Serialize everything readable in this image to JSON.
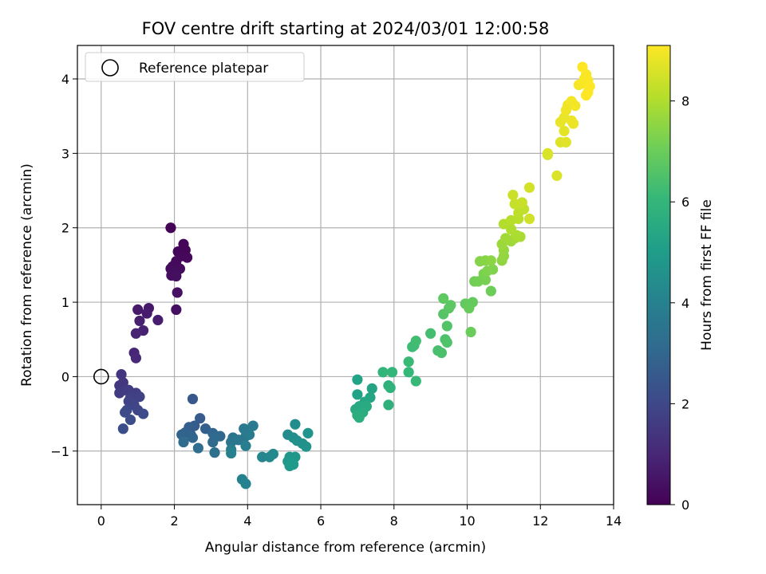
{
  "chart_data": {
    "type": "scatter",
    "title": "FOV centre drift starting at 2024/03/01 12:00:58",
    "xlabel": "Angular distance from reference (arcmin)",
    "ylabel": "Rotation from reference (arcmin)",
    "xlim": [
      -0.65,
      14.0
    ],
    "ylim": [
      -1.72,
      4.45
    ],
    "xticks": [
      0,
      2,
      4,
      6,
      8,
      10,
      12,
      14
    ],
    "yticks": [
      -1,
      0,
      1,
      2,
      3,
      4
    ],
    "xtick_labels": [
      "0",
      "2",
      "4",
      "6",
      "8",
      "10",
      "12",
      "14"
    ],
    "ytick_labels": [
      "−1",
      "0",
      "1",
      "2",
      "3",
      "4"
    ],
    "grid": true,
    "legend": {
      "placement": "top-left",
      "entries": [
        {
          "label": "Reference platepar",
          "marker": "open-circle",
          "color": "#000000"
        }
      ]
    },
    "reference_point": {
      "x": 0,
      "y": 0
    },
    "colorbar": {
      "label": "Hours from first FF file",
      "range": [
        0,
        9.1
      ],
      "ticks": [
        0,
        2,
        4,
        6,
        8
      ],
      "tick_labels": [
        "0",
        "2",
        "4",
        "6",
        "8"
      ],
      "colormap": "viridis"
    },
    "points": [
      [
        1.9,
        2.0,
        0.05
      ],
      [
        2.25,
        1.78,
        0.08
      ],
      [
        2.3,
        1.7,
        0.1
      ],
      [
        2.1,
        1.68,
        0.12
      ],
      [
        2.2,
        1.62,
        0.15
      ],
      [
        2.35,
        1.6,
        0.18
      ],
      [
        2.05,
        1.55,
        0.2
      ],
      [
        1.95,
        1.48,
        0.22
      ],
      [
        2.15,
        1.45,
        0.25
      ],
      [
        1.9,
        1.45,
        0.28
      ],
      [
        2.0,
        1.4,
        0.3
      ],
      [
        1.92,
        1.36,
        0.32
      ],
      [
        2.05,
        1.35,
        0.35
      ],
      [
        2.08,
        1.13,
        0.38
      ],
      [
        2.05,
        0.9,
        0.4
      ],
      [
        1.3,
        0.92,
        0.6
      ],
      [
        1.0,
        0.9,
        0.65
      ],
      [
        1.25,
        0.85,
        0.7
      ],
      [
        1.55,
        0.76,
        0.75
      ],
      [
        1.05,
        0.75,
        0.8
      ],
      [
        1.15,
        0.62,
        0.85
      ],
      [
        0.95,
        0.58,
        0.9
      ],
      [
        0.9,
        0.32,
        0.95
      ],
      [
        0.95,
        0.25,
        1.0
      ],
      [
        0.55,
        0.03,
        1.4
      ],
      [
        0.6,
        -0.08,
        1.45
      ],
      [
        0.5,
        -0.12,
        1.5
      ],
      [
        0.65,
        -0.18,
        1.55
      ],
      [
        0.5,
        -0.22,
        1.6
      ],
      [
        0.75,
        -0.18,
        1.65
      ],
      [
        0.95,
        -0.22,
        1.7
      ],
      [
        0.8,
        -0.28,
        1.75
      ],
      [
        1.05,
        -0.27,
        1.8
      ],
      [
        0.75,
        -0.33,
        1.85
      ],
      [
        0.9,
        -0.38,
        1.9
      ],
      [
        1.0,
        -0.45,
        1.95
      ],
      [
        0.7,
        -0.45,
        2.0
      ],
      [
        1.15,
        -0.5,
        2.05
      ],
      [
        0.65,
        -0.48,
        2.1
      ],
      [
        0.8,
        -0.58,
        2.15
      ],
      [
        0.6,
        -0.7,
        2.2
      ],
      [
        2.5,
        -0.3,
        2.5
      ],
      [
        2.7,
        -0.56,
        2.6
      ],
      [
        2.55,
        -0.66,
        2.65
      ],
      [
        2.4,
        -0.68,
        2.7
      ],
      [
        2.85,
        -0.7,
        2.75
      ],
      [
        2.3,
        -0.75,
        2.8
      ],
      [
        2.45,
        -0.78,
        2.85
      ],
      [
        2.2,
        -0.78,
        2.9
      ],
      [
        2.5,
        -0.82,
        2.95
      ],
      [
        3.05,
        -0.76,
        3.0
      ],
      [
        3.25,
        -0.8,
        3.05
      ],
      [
        3.1,
        -0.82,
        3.1
      ],
      [
        3.05,
        -0.88,
        3.15
      ],
      [
        2.25,
        -0.88,
        3.2
      ],
      [
        2.65,
        -0.96,
        3.25
      ],
      [
        3.1,
        -1.02,
        3.3
      ],
      [
        3.6,
        -0.82,
        3.5
      ],
      [
        3.55,
        -0.88,
        3.55
      ],
      [
        3.75,
        -0.85,
        3.6
      ],
      [
        3.95,
        -0.8,
        3.65
      ],
      [
        3.9,
        -0.7,
        3.7
      ],
      [
        4.15,
        -0.66,
        3.75
      ],
      [
        4.05,
        -0.78,
        3.8
      ],
      [
        3.95,
        -0.93,
        3.85
      ],
      [
        3.55,
        -0.98,
        3.9
      ],
      [
        3.55,
        -1.03,
        3.95
      ],
      [
        3.85,
        -1.38,
        4.0
      ],
      [
        3.95,
        -1.44,
        4.05
      ],
      [
        4.4,
        -1.08,
        4.2
      ],
      [
        4.6,
        -1.08,
        4.25
      ],
      [
        4.7,
        -1.04,
        4.3
      ],
      [
        5.1,
        -0.78,
        4.4
      ],
      [
        5.3,
        -0.64,
        4.45
      ],
      [
        5.25,
        -0.82,
        4.5
      ],
      [
        5.35,
        -0.86,
        4.55
      ],
      [
        5.5,
        -0.9,
        4.6
      ],
      [
        5.6,
        -0.94,
        4.65
      ],
      [
        5.65,
        -0.76,
        4.7
      ],
      [
        5.15,
        -1.08,
        4.75
      ],
      [
        5.3,
        -1.08,
        4.8
      ],
      [
        5.1,
        -1.14,
        4.85
      ],
      [
        5.15,
        -1.2,
        4.9
      ],
      [
        5.25,
        -1.18,
        4.95
      ],
      [
        7.0,
        -0.04,
        5.2
      ],
      [
        7.0,
        -0.24,
        5.25
      ],
      [
        7.4,
        -0.16,
        5.3
      ],
      [
        7.35,
        -0.28,
        5.35
      ],
      [
        7.2,
        -0.34,
        5.4
      ],
      [
        7.05,
        -0.4,
        5.45
      ],
      [
        6.95,
        -0.44,
        5.5
      ],
      [
        7.25,
        -0.4,
        5.55
      ],
      [
        7.15,
        -0.48,
        5.6
      ],
      [
        7.0,
        -0.52,
        5.65
      ],
      [
        7.05,
        -0.55,
        5.7
      ],
      [
        7.85,
        -0.12,
        5.75
      ],
      [
        7.85,
        -0.38,
        5.8
      ],
      [
        7.9,
        -0.15,
        5.85
      ],
      [
        7.7,
        0.06,
        5.95
      ],
      [
        7.95,
        0.06,
        6.0
      ],
      [
        8.4,
        0.06,
        6.05
      ],
      [
        8.6,
        -0.06,
        6.1
      ],
      [
        8.4,
        0.2,
        6.15
      ],
      [
        8.5,
        0.4,
        6.2
      ],
      [
        8.55,
        0.42,
        6.25
      ],
      [
        8.6,
        0.48,
        6.3
      ],
      [
        9.0,
        0.58,
        6.35
      ],
      [
        9.2,
        0.35,
        6.4
      ],
      [
        9.3,
        0.32,
        6.45
      ],
      [
        9.4,
        0.5,
        6.5
      ],
      [
        9.45,
        0.46,
        6.55
      ],
      [
        9.45,
        0.68,
        6.6
      ],
      [
        9.35,
        0.84,
        6.65
      ],
      [
        9.5,
        0.92,
        6.7
      ],
      [
        9.55,
        0.96,
        6.75
      ],
      [
        9.35,
        1.05,
        6.8
      ],
      [
        9.95,
        0.98,
        6.85
      ],
      [
        10.15,
        1.0,
        6.9
      ],
      [
        10.05,
        0.92,
        6.95
      ],
      [
        10.1,
        0.6,
        7.0
      ],
      [
        10.2,
        1.28,
        7.1
      ],
      [
        10.3,
        1.28,
        7.15
      ],
      [
        10.5,
        1.3,
        7.2
      ],
      [
        10.45,
        1.38,
        7.25
      ],
      [
        10.55,
        1.42,
        7.3
      ],
      [
        10.7,
        1.44,
        7.35
      ],
      [
        10.35,
        1.55,
        7.4
      ],
      [
        10.5,
        1.56,
        7.45
      ],
      [
        10.65,
        1.56,
        7.5
      ],
      [
        10.95,
        1.56,
        7.55
      ],
      [
        11.0,
        1.62,
        7.6
      ],
      [
        11.0,
        1.7,
        7.65
      ],
      [
        10.95,
        1.78,
        7.7
      ],
      [
        11.2,
        1.82,
        7.75
      ],
      [
        11.05,
        1.86,
        7.8
      ],
      [
        11.3,
        1.86,
        7.85
      ],
      [
        11.45,
        1.88,
        7.9
      ],
      [
        11.35,
        1.9,
        7.95
      ],
      [
        11.2,
        1.98,
        8.0
      ],
      [
        11.0,
        2.05,
        8.05
      ],
      [
        11.2,
        2.1,
        8.1
      ],
      [
        11.4,
        2.12,
        8.15
      ],
      [
        11.4,
        2.2,
        8.2
      ],
      [
        11.55,
        2.25,
        8.25
      ],
      [
        11.3,
        2.32,
        8.3
      ],
      [
        11.5,
        2.34,
        8.35
      ],
      [
        11.25,
        2.44,
        8.4
      ],
      [
        11.7,
        2.12,
        8.45
      ],
      [
        11.7,
        2.54,
        8.5
      ],
      [
        10.65,
        1.15,
        7.05
      ],
      [
        12.2,
        2.98,
        8.55
      ],
      [
        12.2,
        3.0,
        8.6
      ],
      [
        12.45,
        2.7,
        8.6
      ],
      [
        12.55,
        3.15,
        8.65
      ],
      [
        12.7,
        3.15,
        8.7
      ],
      [
        12.65,
        3.3,
        8.75
      ],
      [
        12.55,
        3.42,
        8.8
      ],
      [
        12.65,
        3.48,
        8.8
      ],
      [
        12.85,
        3.44,
        8.85
      ],
      [
        12.9,
        3.4,
        8.85
      ],
      [
        12.7,
        3.58,
        8.9
      ],
      [
        12.75,
        3.65,
        8.9
      ],
      [
        12.85,
        3.7,
        8.95
      ],
      [
        12.95,
        3.64,
        8.95
      ],
      [
        13.05,
        3.92,
        9.0
      ],
      [
        13.15,
        3.94,
        9.0
      ],
      [
        13.2,
        4.0,
        9.05
      ],
      [
        13.25,
        4.06,
        9.05
      ],
      [
        13.3,
        3.98,
        9.05
      ],
      [
        13.35,
        3.9,
        9.1
      ],
      [
        13.3,
        3.82,
        9.1
      ],
      [
        13.15,
        4.16,
        9.1
      ],
      [
        13.25,
        3.78,
        9.1
      ]
    ]
  }
}
